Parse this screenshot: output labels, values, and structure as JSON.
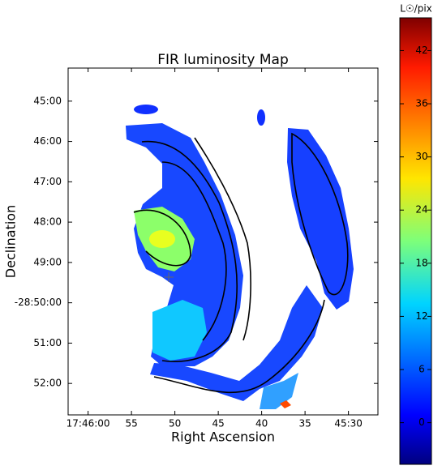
{
  "chart_data": {
    "type": "image",
    "title": "FIR luminosity Map",
    "xlabel": "Right Ascension",
    "ylabel": "Declination",
    "xlim": [
      62.3,
      26.6
    ],
    "xticks": [
      {
        "value": 60,
        "label": "17:46:00"
      },
      {
        "value": 55,
        "label": "55"
      },
      {
        "value": 50,
        "label": "50"
      },
      {
        "value": 45,
        "label": "45"
      },
      {
        "value": 40,
        "label": "40"
      },
      {
        "value": 35,
        "label": "35"
      },
      {
        "value": 30,
        "label": "45:30"
      }
    ],
    "ylim": [
      52.78,
      44.18
    ],
    "yticks": [
      {
        "value": 45,
        "label": "45:00"
      },
      {
        "value": 46,
        "label": "46:00"
      },
      {
        "value": 47,
        "label": "47:00"
      },
      {
        "value": 48,
        "label": "48:00"
      },
      {
        "value": 49,
        "label": "49:00"
      },
      {
        "value": 50,
        "label": "-28:50:00"
      },
      {
        "value": 51,
        "label": "51:00"
      },
      {
        "value": 52,
        "label": "52:00"
      }
    ],
    "colorbar": {
      "label": "L☉/pix",
      "clim": [
        -4.7,
        45.7
      ],
      "ticks": [
        0,
        6,
        12,
        18,
        24,
        30,
        36,
        42
      ]
    }
  }
}
